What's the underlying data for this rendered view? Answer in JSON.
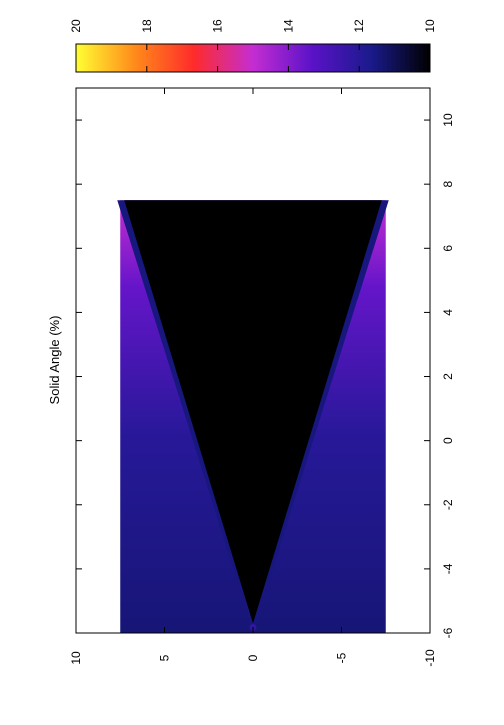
{
  "chart_data": {
    "type": "heatmap",
    "title": "",
    "xlabel": "",
    "ylabel": "Solid Angle (%)",
    "orientation": "rotated-90-clockwise",
    "xlim": [
      -6,
      11
    ],
    "ylim": [
      -10,
      10
    ],
    "x_ticks": [
      "-6",
      "-4",
      "-2",
      "0",
      "2",
      "4",
      "6",
      "8",
      "10"
    ],
    "y_ticks": [
      "10",
      "5",
      "0",
      "-5",
      "-10"
    ],
    "data_region": {
      "x": [
        -6,
        7.5
      ],
      "y": [
        -7.5,
        7.5
      ]
    },
    "cone": {
      "apex_x": -5.7,
      "apex_y": 0,
      "end_x": 7.5,
      "end_half_width": 7.5
    },
    "values": {
      "inside_cone": 10,
      "cone_edge": 11.5,
      "outside_cone_near": 12,
      "outside_cone_far": 15
    },
    "colorbar": {
      "range": [
        10,
        20
      ],
      "ticks": [
        "20",
        "18",
        "16",
        "14",
        "12",
        "10"
      ],
      "colormap": [
        "#000000",
        "#1a1a8c",
        "#5b12c8",
        "#c42dd2",
        "#ff2b2b",
        "#ff8a1a",
        "#ffff33"
      ]
    },
    "grid": false,
    "legend": "colorbar-top"
  }
}
